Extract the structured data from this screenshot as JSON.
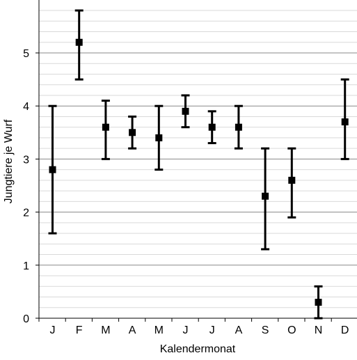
{
  "chart_data": {
    "type": "scatter",
    "title": "",
    "xlabel": "Kalendermonat",
    "ylabel": "Jungtiere je Wurf",
    "categories": [
      "J",
      "F",
      "M",
      "A",
      "M",
      "J",
      "J",
      "A",
      "S",
      "O",
      "N",
      "D"
    ],
    "values": [
      2.8,
      5.2,
      3.6,
      3.5,
      3.4,
      3.9,
      3.6,
      3.6,
      2.3,
      2.6,
      0.3,
      3.7
    ],
    "error_low": [
      1.6,
      4.5,
      3.0,
      3.2,
      2.8,
      3.6,
      3.3,
      3.2,
      1.3,
      1.9,
      0.0,
      3.0
    ],
    "error_high": [
      4.0,
      5.8,
      4.1,
      3.8,
      4.0,
      4.2,
      3.9,
      4.0,
      3.2,
      3.2,
      0.6,
      4.5
    ],
    "ylim": [
      0,
      6
    ],
    "yticks": [
      0,
      1,
      2,
      3,
      4,
      5
    ],
    "grid": true,
    "legend": "none",
    "colors": {
      "marker": "#000000",
      "major_grid": "#888888",
      "minor_grid": "#d9d9d9",
      "axis": "#000000"
    }
  }
}
